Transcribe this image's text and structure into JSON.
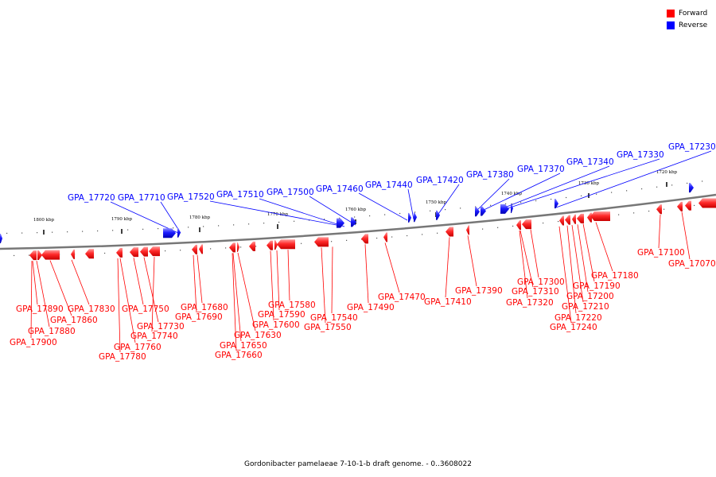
{
  "legend": {
    "forward": {
      "label": "Forward",
      "color": "#ff0000"
    },
    "reverse": {
      "label": "Reverse",
      "color": "#0000ff"
    }
  },
  "caption": "Gordonibacter pamelaeae 7-10-1-b draft genome. - 0..3608022",
  "ruler": [
    "1800 kbp",
    "1790 kbp",
    "1780 kbp",
    "1770 kbp",
    "1760 kbp",
    "1750 kbp",
    "1740 kbp",
    "1730 kbp",
    "1720 kbp"
  ],
  "reverse_labels": [
    "GPA_17720",
    "GPA_17710",
    "GPA_17520",
    "GPA_17510",
    "GPA_17500",
    "GPA_17460",
    "GPA_17440",
    "GPA_17420",
    "GPA_17380",
    "GPA_17370",
    "GPA_17340",
    "GPA_17330",
    "GPA_17230"
  ],
  "forward_labels": [
    "GPA_17890",
    "GPA_17880",
    "GPA_17900",
    "GPA_17860",
    "GPA_17830",
    "GPA_17750",
    "GPA_17730",
    "GPA_17740",
    "GPA_17760",
    "GPA_17780",
    "GPA_17680",
    "GPA_17690",
    "GPA_17630",
    "GPA_17650",
    "GPA_17660",
    "GPA_17580",
    "GPA_17590",
    "GPA_17600",
    "GPA_17540",
    "GPA_17550",
    "GPA_17490",
    "GPA_17470",
    "GPA_17410",
    "GPA_17390",
    "GPA_17300",
    "GPA_17310",
    "GPA_17320",
    "GPA_17190",
    "GPA_17200",
    "GPA_17210",
    "GPA_17220",
    "GPA_17240",
    "GPA_17180",
    "GPA_17100",
    "GPA_17070"
  ]
}
